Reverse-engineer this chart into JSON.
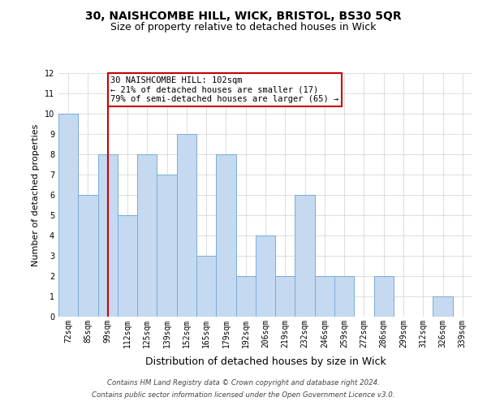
{
  "title_line1": "30, NAISHCOMBE HILL, WICK, BRISTOL, BS30 5QR",
  "title_line2": "Size of property relative to detached houses in Wick",
  "xlabel": "Distribution of detached houses by size in Wick",
  "ylabel": "Number of detached properties",
  "categories": [
    "72sqm",
    "85sqm",
    "99sqm",
    "112sqm",
    "125sqm",
    "139sqm",
    "152sqm",
    "165sqm",
    "179sqm",
    "192sqm",
    "206sqm",
    "219sqm",
    "232sqm",
    "246sqm",
    "259sqm",
    "272sqm",
    "286sqm",
    "299sqm",
    "312sqm",
    "326sqm",
    "339sqm"
  ],
  "values": [
    10,
    6,
    8,
    5,
    8,
    7,
    9,
    3,
    8,
    2,
    4,
    2,
    6,
    2,
    2,
    0,
    2,
    0,
    0,
    1,
    0
  ],
  "bar_color": "#c5d9f1",
  "bar_edge_color": "#7aadd4",
  "red_line_index": 2,
  "ylim": [
    0,
    12
  ],
  "yticks": [
    0,
    1,
    2,
    3,
    4,
    5,
    6,
    7,
    8,
    9,
    10,
    11,
    12
  ],
  "annotation_box_text": "30 NAISHCOMBE HILL: 102sqm\n← 21% of detached houses are smaller (17)\n79% of semi-detached houses are larger (65) →",
  "footnote1": "Contains HM Land Registry data © Crown copyright and database right 2024.",
  "footnote2": "Contains public sector information licensed under the Open Government Licence v3.0.",
  "grid_color": "#d0d0d0",
  "background_color": "#ffffff",
  "annotation_box_color": "#ffffff",
  "annotation_box_edge_color": "#cc0000",
  "red_line_color": "#cc0000",
  "title1_fontsize": 10,
  "title2_fontsize": 9,
  "ylabel_fontsize": 8,
  "xlabel_fontsize": 9,
  "tick_fontsize": 7,
  "annot_fontsize": 7.5
}
